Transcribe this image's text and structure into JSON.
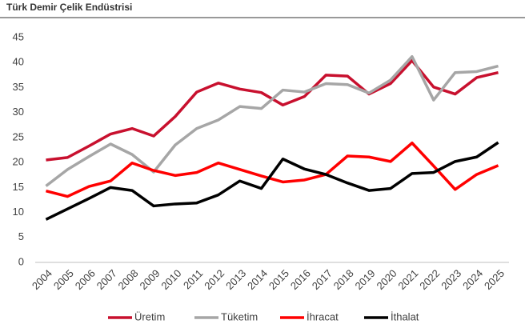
{
  "chart_data": {
    "type": "line",
    "title": "Türk Demir Çelik Endüstrisi",
    "categories": [
      "2004",
      "2005",
      "2006",
      "2007",
      "2008",
      "2009",
      "2010",
      "2011",
      "2012",
      "2013",
      "2014",
      "2015",
      "2016",
      "2017",
      "2018",
      "2019",
      "2020",
      "2021",
      "2022",
      "2023",
      "2024",
      "2025"
    ],
    "series": [
      {
        "name": "Üretim",
        "color": "#c8102e",
        "values": [
          20.5,
          21,
          23.3,
          25.7,
          26.8,
          25.3,
          29.2,
          34.1,
          35.9,
          34.7,
          34.0,
          31.5,
          33.2,
          37.5,
          37.3,
          33.7,
          35.8,
          40.4,
          35.1,
          33.7,
          37.0,
          38.0
        ]
      },
      {
        "name": "Tüketim",
        "color": "#a6a6a6",
        "values": [
          15.3,
          18.6,
          21.2,
          23.7,
          21.6,
          18.1,
          23.5,
          26.8,
          28.5,
          31.2,
          30.8,
          34.5,
          34.1,
          35.8,
          35.6,
          33.9,
          36.5,
          41.2,
          32.5,
          38.0,
          38.2,
          39.3
        ]
      },
      {
        "name": "İhracat",
        "color": "#ff0000",
        "values": [
          14.3,
          13.2,
          15.2,
          16.3,
          19.9,
          18.4,
          17.4,
          18.0,
          19.9,
          18.6,
          17.3,
          16.1,
          16.5,
          17.6,
          21.3,
          21.1,
          20.2,
          23.9,
          19.3,
          14.6,
          17.6,
          19.4
        ]
      },
      {
        "name": "İthalat",
        "color": "#000000",
        "values": [
          8.6,
          10.7,
          12.8,
          15.0,
          14.4,
          11.3,
          11.7,
          11.9,
          13.5,
          16.3,
          14.8,
          20.7,
          18.7,
          17.6,
          15.9,
          14.4,
          14.8,
          17.8,
          18.0,
          20.2,
          21.1,
          24.0
        ]
      }
    ],
    "ylim": [
      0,
      45
    ],
    "yticks": [
      0,
      5,
      10,
      15,
      20,
      25,
      30,
      35,
      40,
      45
    ],
    "grid": false,
    "legend": "bottom"
  }
}
